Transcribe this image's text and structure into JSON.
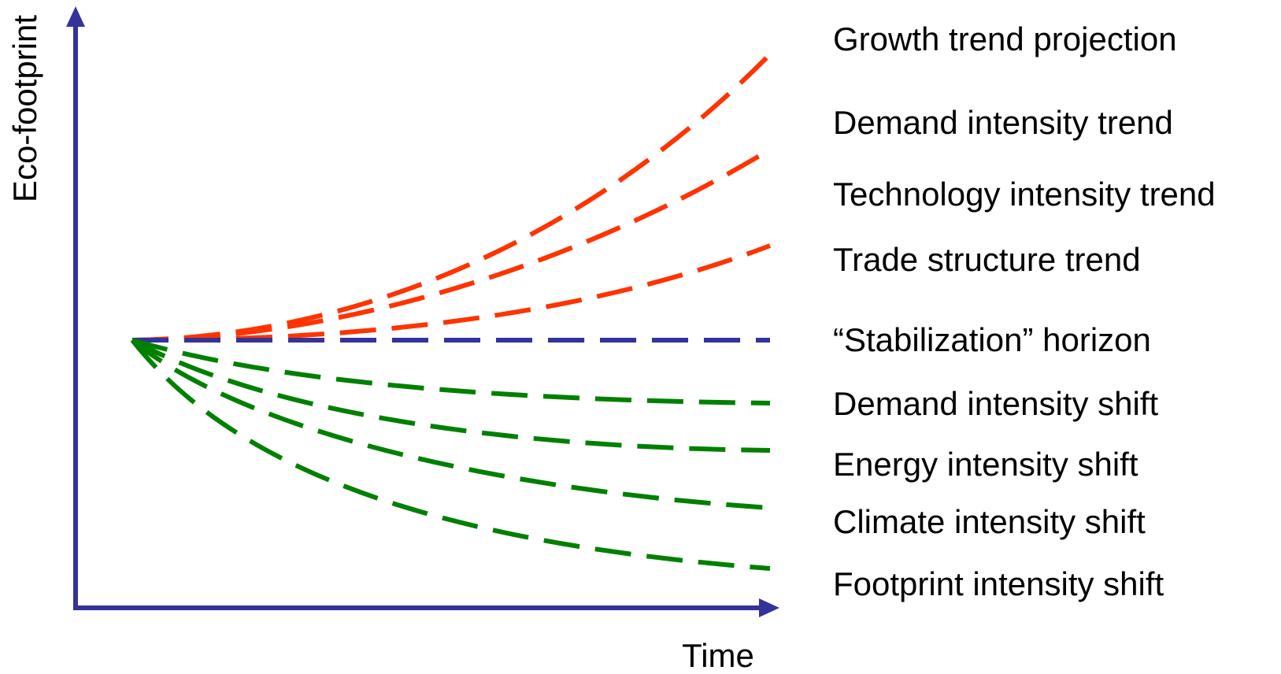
{
  "colors": {
    "axis": "#333399",
    "trend": "#ff3300",
    "shift": "#008000",
    "stabilization": "#333399",
    "text": "#000000"
  },
  "axes": {
    "y_label": "Eco-footprint",
    "x_label": "Time"
  },
  "scenarios": [
    {
      "id": "growth-trend-projection",
      "label": "Growth trend projection",
      "group": "trend"
    },
    {
      "id": "demand-intensity-trend",
      "label": "Demand intensity trend",
      "group": "trend"
    },
    {
      "id": "technology-intensity-trend",
      "label": "Technology intensity trend",
      "group": "trend"
    },
    {
      "id": "trade-structure-trend",
      "label": "Trade structure trend",
      "group": "trend"
    },
    {
      "id": "stabilization-horizon",
      "label": "“Stabilization” horizon",
      "group": "stabilization"
    },
    {
      "id": "demand-intensity-shift",
      "label": "Demand intensity shift",
      "group": "shift"
    },
    {
      "id": "energy-intensity-shift",
      "label": "Energy intensity shift",
      "group": "shift"
    },
    {
      "id": "climate-intensity-shift",
      "label": "Climate intensity shift",
      "group": "shift"
    },
    {
      "id": "footprint-intensity-shift",
      "label": "Footprint intensity shift",
      "group": "shift"
    }
  ]
}
